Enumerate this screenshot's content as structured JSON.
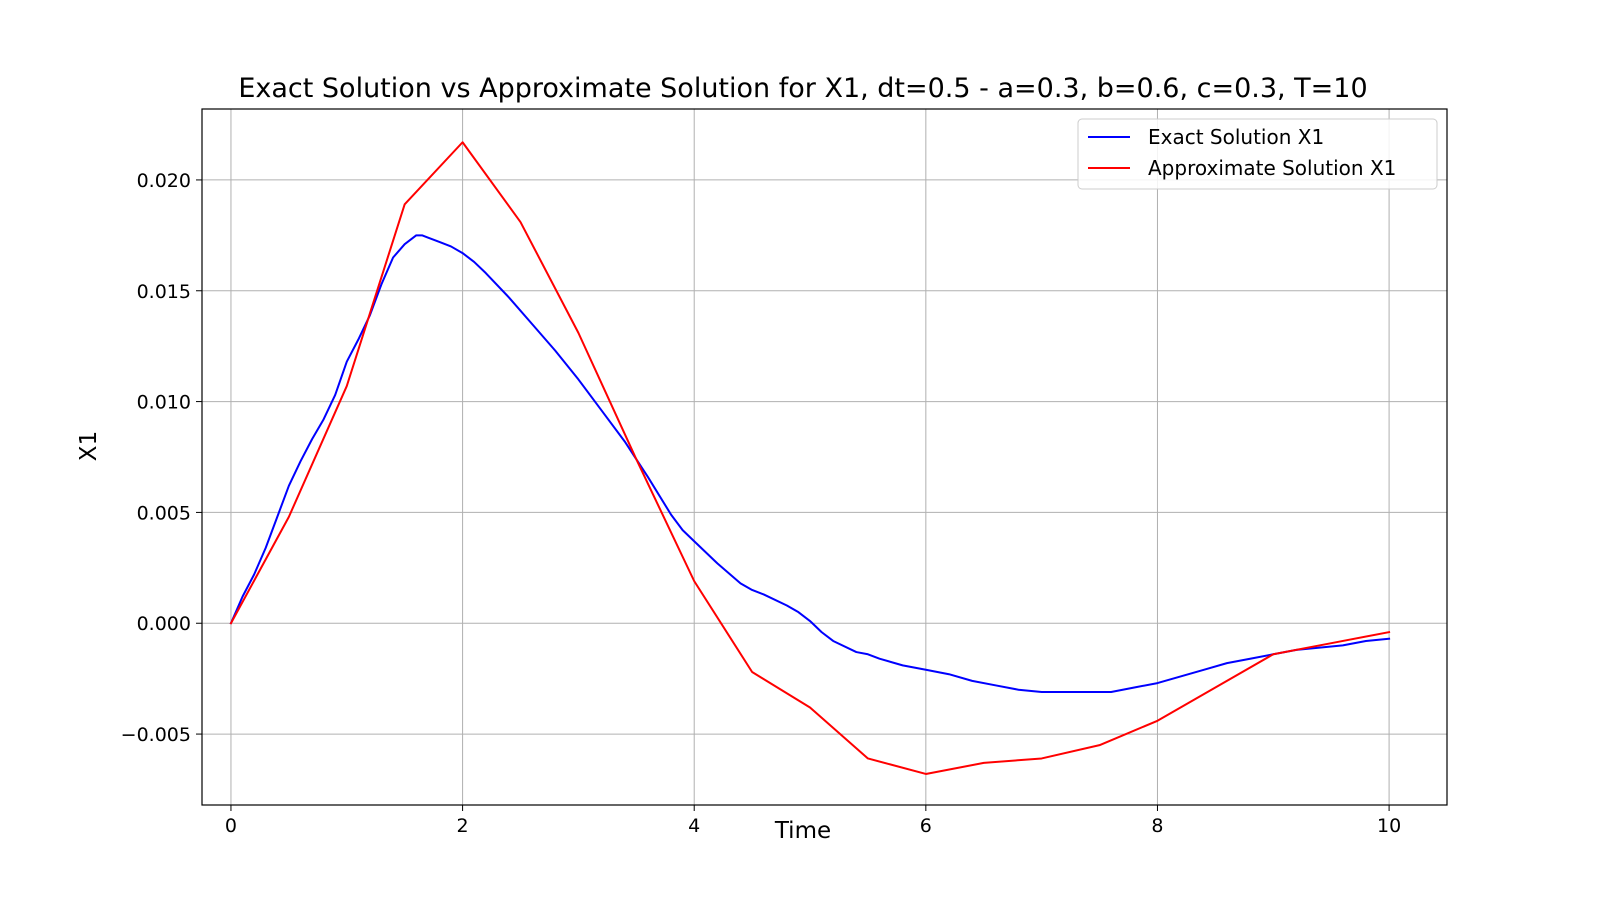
{
  "chart_data": {
    "type": "line",
    "title": "Exact Solution vs Approximate Solution for X1, dt=0.5 - a=0.3, b=0.6, c=0.3, T=10",
    "xlabel": "Time",
    "ylabel": "X1",
    "xlim": [
      -0.25,
      10.5
    ],
    "ylim": [
      -0.0082,
      0.0232
    ],
    "x_ticks": [
      0,
      2,
      4,
      6,
      8,
      10
    ],
    "x_tick_labels": [
      "0",
      "2",
      "4",
      "6",
      "8",
      "10"
    ],
    "y_ticks": [
      -0.005,
      0.0,
      0.005,
      0.01,
      0.015,
      0.02
    ],
    "y_tick_labels": [
      "−0.005",
      "0.000",
      "0.005",
      "0.010",
      "0.015",
      "0.020"
    ],
    "grid": true,
    "legend_position": "top-right",
    "series": [
      {
        "name": "Exact Solution X1",
        "color": "#0000ff",
        "x": [
          0,
          0.1,
          0.2,
          0.3,
          0.4,
          0.5,
          0.6,
          0.7,
          0.8,
          0.9,
          1.0,
          1.1,
          1.2,
          1.3,
          1.4,
          1.5,
          1.6,
          1.65,
          1.7,
          1.8,
          1.9,
          2.0,
          2.1,
          2.2,
          2.4,
          2.6,
          2.8,
          3.0,
          3.2,
          3.4,
          3.6,
          3.8,
          3.9,
          4.0,
          4.2,
          4.4,
          4.5,
          4.6,
          4.8,
          4.9,
          5.0,
          5.1,
          5.2,
          5.4,
          5.5,
          5.6,
          5.8,
          6.0,
          6.2,
          6.4,
          6.6,
          6.8,
          7.0,
          7.2,
          7.4,
          7.6,
          7.8,
          8.0,
          8.2,
          8.4,
          8.6,
          8.8,
          9.0,
          9.2,
          9.4,
          9.6,
          9.8,
          10.0
        ],
        "y": [
          0.0,
          0.0012,
          0.0022,
          0.0034,
          0.0048,
          0.0062,
          0.0073,
          0.0083,
          0.0092,
          0.0103,
          0.0118,
          0.0128,
          0.0139,
          0.0153,
          0.0165,
          0.0171,
          0.0175,
          0.0175,
          0.0174,
          0.0172,
          0.017,
          0.0167,
          0.0163,
          0.0158,
          0.0147,
          0.0135,
          0.0123,
          0.011,
          0.0096,
          0.0082,
          0.0066,
          0.0049,
          0.0042,
          0.0037,
          0.0027,
          0.0018,
          0.0015,
          0.0013,
          0.0008,
          0.0005,
          0.0001,
          -0.0004,
          -0.0008,
          -0.0013,
          -0.0014,
          -0.0016,
          -0.0019,
          -0.0021,
          -0.0023,
          -0.0026,
          -0.0028,
          -0.003,
          -0.0031,
          -0.0031,
          -0.0031,
          -0.0031,
          -0.0029,
          -0.0027,
          -0.0024,
          -0.0021,
          -0.0018,
          -0.0016,
          -0.0014,
          -0.0012,
          -0.0011,
          -0.001,
          -0.0008,
          -0.0007
        ]
      },
      {
        "name": "Approximate Solution X1",
        "color": "#ff0000",
        "x": [
          0,
          0.5,
          1.0,
          1.5,
          2.0,
          2.5,
          3.0,
          3.5,
          4.0,
          4.5,
          5.0,
          5.5,
          6.0,
          6.5,
          7.0,
          7.5,
          8.0,
          8.5,
          9.0,
          9.5,
          10.0
        ],
        "y": [
          0.0,
          0.0048,
          0.0107,
          0.0189,
          0.0217,
          0.0181,
          0.0131,
          0.0074,
          0.0019,
          -0.0022,
          -0.0038,
          -0.0061,
          -0.0068,
          -0.0063,
          -0.0061,
          -0.0055,
          -0.0044,
          -0.0029,
          -0.0014,
          -0.0009,
          -0.0004
        ]
      }
    ]
  }
}
